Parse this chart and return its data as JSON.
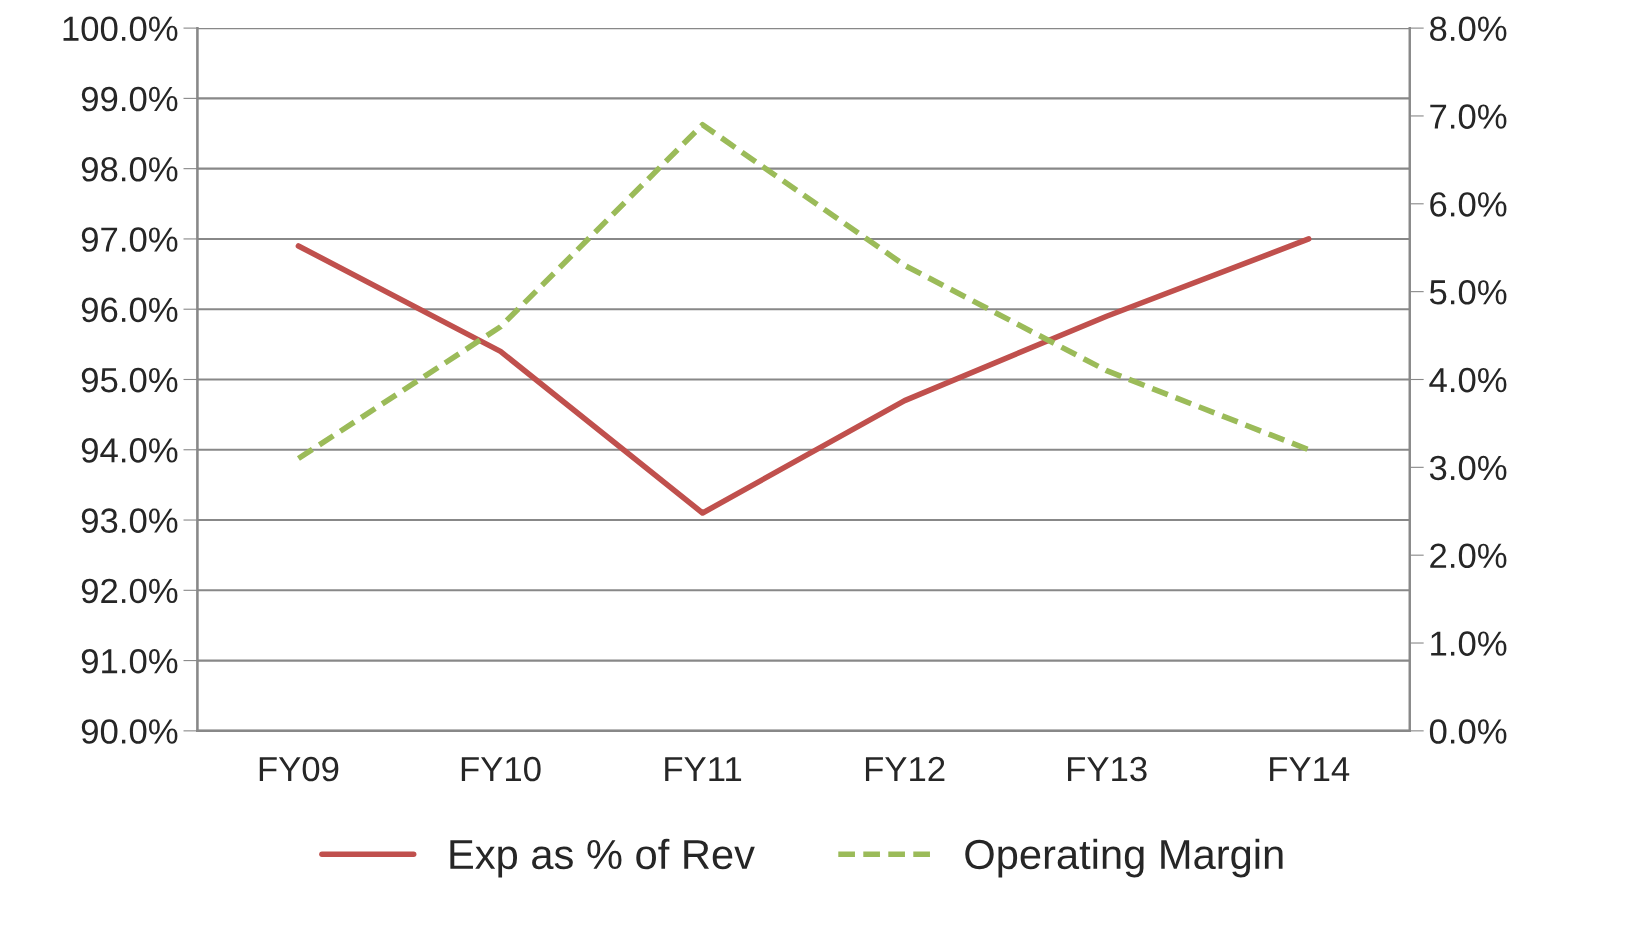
{
  "chart_data": {
    "type": "line",
    "categories": [
      "FY09",
      "FY10",
      "FY11",
      "FY12",
      "FY13",
      "FY14"
    ],
    "series": [
      {
        "name": "Exp as % of Rev",
        "color": "#c0504d",
        "values": [
          96.9,
          95.4,
          93.1,
          94.7,
          95.9,
          97.0
        ],
        "line_style": "solid"
      },
      {
        "name": "Operating Margin",
        "color": "#9bbb59",
        "values": [
          3.1,
          4.6,
          6.9,
          5.3,
          4.1,
          3.2
        ],
        "axis": "y2",
        "line_style": "dashed"
      }
    ],
    "ylim": [
      90,
      100
    ],
    "yticks": [
      {
        "value": 90,
        "label": "90.0%"
      },
      {
        "value": 91,
        "label": "91.0%"
      },
      {
        "value": 92,
        "label": "92.0%"
      },
      {
        "value": 93,
        "label": "93.0%"
      },
      {
        "value": 94,
        "label": "94.0%"
      },
      {
        "value": 95,
        "label": "95.0%"
      },
      {
        "value": 96,
        "label": "96.0%"
      },
      {
        "value": 97,
        "label": "97.0%"
      },
      {
        "value": 98,
        "label": "98.0%"
      },
      {
        "value": 99,
        "label": "99.0%"
      },
      {
        "value": 100,
        "label": "100.0%"
      }
    ],
    "y2lim": [
      0,
      8
    ],
    "y2ticks": [
      {
        "value": 0,
        "label": "0.0%"
      },
      {
        "value": 1,
        "label": "1.0%"
      },
      {
        "value": 2,
        "label": "2.0%"
      },
      {
        "value": 3,
        "label": "3.0%"
      },
      {
        "value": 4,
        "label": "4.0%"
      },
      {
        "value": 5,
        "label": "5.0%"
      },
      {
        "value": 6,
        "label": "6.0%"
      },
      {
        "value": 7,
        "label": "7.0%"
      },
      {
        "value": 8,
        "label": "8.0%"
      }
    ],
    "grid": "y",
    "legend": "bottom",
    "marker": "none"
  }
}
